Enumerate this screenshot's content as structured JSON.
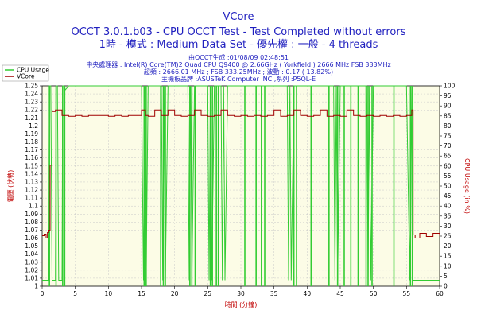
{
  "title": "VCore",
  "subtitle1": "OCCT 3.0.1.b03 - CPU OCCT Test - Test Completed without errors",
  "subtitle2": "1時 - 模式 : Medium Data Set - 優先權 : 一般 - 4 threads",
  "info": [
    "由OCCT生成 :01/08/09 02:48:51",
    "中央處理器 : Intel(R) Core(TM)2 Quad CPU Q9400 @ 2.66GHz ( Yorkfield ) 2666 MHz FSB 333MHz",
    "超頻 : 2666.01 MHz ; FSB 333.25MHz ; 波動 : 0.17 ( 13.82%)",
    "主機板品牌 :ASUSTeK Computer INC.,系列 :P5QL-E"
  ],
  "legend": [
    {
      "name": "CPU Usage",
      "color": "#33cc33"
    },
    {
      "name": "VCore",
      "color": "#a00000"
    }
  ],
  "chart_data": {
    "type": "line",
    "xlabel": "時間 (分鐘)",
    "ylabel_left": "電壓 (伏特)",
    "ylabel_right": "CPU Usage (in %)",
    "xlim": [
      0,
      60
    ],
    "ylim_left": [
      1.0,
      1.25
    ],
    "ylim_right": [
      0,
      100
    ],
    "x_ticks": [
      "0",
      "5",
      "10",
      "15",
      "20",
      "25",
      "30",
      "35",
      "40",
      "45",
      "50",
      "55",
      "60"
    ],
    "y_left_ticks": [
      "1",
      "1.01",
      "1.02",
      "1.03",
      "1.04",
      "1.05",
      "1.06",
      "1.07",
      "1.08",
      "1.09",
      "1.1",
      "1.11",
      "1.12",
      "1.13",
      "1.14",
      "1.15",
      "1.16",
      "1.17",
      "1.18",
      "1.19",
      "1.2",
      "1.21",
      "1.22",
      "1.23",
      "1.24",
      "1.25"
    ],
    "y_right_ticks": [
      "0",
      "5",
      "10",
      "15",
      "20",
      "25",
      "30",
      "35",
      "40",
      "45",
      "50",
      "55",
      "60",
      "65",
      "70",
      "75",
      "80",
      "85",
      "90",
      "95",
      "100"
    ],
    "grid": true,
    "legend_position": "top-left",
    "series": [
      {
        "name": "VCore",
        "axis": "left",
        "color": "#a00000",
        "x": [
          0,
          0.3,
          0.6,
          0.8,
          1.0,
          1.2,
          1.5,
          2.0,
          3.0,
          4.0,
          5.0,
          6.0,
          7.0,
          8.0,
          9.0,
          10.0,
          11.0,
          12.0,
          13.0,
          14.0,
          15.0,
          15.6,
          16.0,
          17.0,
          18.0,
          19.0,
          20.0,
          21.0,
          22.0,
          23.0,
          24.0,
          25.0,
          26.0,
          27.0,
          28.0,
          29.0,
          30.0,
          31.0,
          32.0,
          33.0,
          34.0,
          35.0,
          36.0,
          37.0,
          38.0,
          39.0,
          40.0,
          41.0,
          42.0,
          43.0,
          44.0,
          45.0,
          46.0,
          47.0,
          48.0,
          49.0,
          50.0,
          51.0,
          52.0,
          53.0,
          54.0,
          55.0,
          55.8,
          56.0,
          56.3,
          57.0,
          58.0,
          59.0,
          60.0
        ],
        "values": [
          1.063,
          1.065,
          1.06,
          1.067,
          1.07,
          1.151,
          1.218,
          1.22,
          1.213,
          1.212,
          1.213,
          1.212,
          1.213,
          1.213,
          1.213,
          1.212,
          1.213,
          1.212,
          1.213,
          1.213,
          1.22,
          1.213,
          1.212,
          1.22,
          1.213,
          1.22,
          1.213,
          1.212,
          1.213,
          1.22,
          1.213,
          1.212,
          1.213,
          1.22,
          1.213,
          1.212,
          1.213,
          1.212,
          1.213,
          1.212,
          1.213,
          1.22,
          1.212,
          1.213,
          1.22,
          1.213,
          1.212,
          1.213,
          1.22,
          1.212,
          1.213,
          1.212,
          1.22,
          1.213,
          1.212,
          1.213,
          1.212,
          1.213,
          1.212,
          1.213,
          1.212,
          1.213,
          1.22,
          1.064,
          1.06,
          1.066,
          1.062,
          1.066,
          1.063
        ]
      },
      {
        "name": "CPU Usage",
        "axis": "right",
        "color": "#33cc33",
        "x": [
          0,
          0.5,
          1.0,
          1.1,
          1.3,
          1.5,
          2.0,
          2.1,
          2.3,
          2.5,
          3.0,
          3.1,
          3.3,
          3.5,
          4.0,
          8.0,
          12.0,
          15.0,
          15.3,
          15.5,
          15.7,
          16.0,
          17.0,
          18.0,
          18.2,
          18.4,
          18.6,
          19.0,
          20.0,
          22.0,
          22.2,
          22.4,
          22.6,
          23.0,
          25.0,
          25.2,
          25.4,
          25.6,
          26.0,
          27.0,
          27.2,
          27.4,
          27.6,
          28.0,
          30.0,
          34.0,
          37.0,
          37.2,
          37.4,
          37.6,
          38.0,
          40.0,
          44.0,
          44.2,
          44.4,
          44.6,
          45.0,
          48.0,
          49.0,
          49.2,
          49.4,
          49.6,
          50.0,
          52.0,
          55.0,
          55.5,
          55.7,
          55.9,
          56.1,
          56.3,
          60.0
        ],
        "values": [
          3,
          3,
          3,
          100,
          100,
          3,
          3,
          100,
          100,
          3,
          3,
          100,
          100,
          98,
          100,
          100,
          100,
          100,
          3,
          100,
          3,
          100,
          100,
          100,
          3,
          100,
          3,
          100,
          100,
          100,
          3,
          100,
          3,
          100,
          100,
          3,
          100,
          3,
          100,
          100,
          3,
          100,
          3,
          100,
          100,
          100,
          100,
          3,
          100,
          3,
          100,
          100,
          100,
          3,
          100,
          3,
          100,
          100,
          100,
          3,
          100,
          3,
          100,
          100,
          100,
          3,
          100,
          3,
          3,
          3,
          3
        ]
      }
    ],
    "cpu_dips_minutes": [
      1.1,
      2.1,
      3.1,
      3.4,
      15.4,
      15.7,
      17.9,
      18.3,
      18.6,
      22.3,
      22.6,
      23.1,
      25.4,
      25.7,
      26.3,
      26.6,
      30.6,
      32.3,
      33.1,
      33.6,
      38.0,
      38.4,
      40.6,
      43.3,
      44.6,
      45.6,
      46.6,
      47.7,
      48.9,
      49.2,
      49.8,
      53.1,
      55.6,
      55.9
    ]
  }
}
